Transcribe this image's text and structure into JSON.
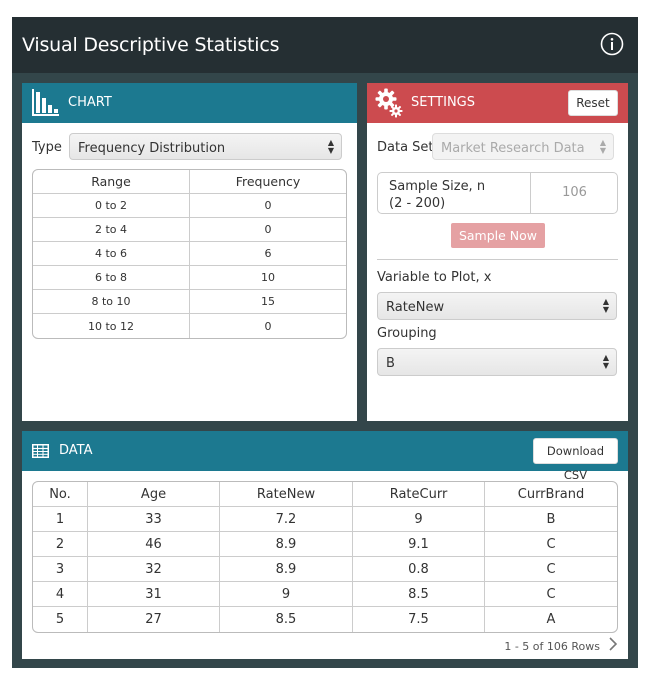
{
  "app": {
    "title": "Visual Descriptive Statistics"
  },
  "chart": {
    "title": "CHART",
    "type_label": "Type",
    "type_value": "Frequency Distribution",
    "table": {
      "headers": [
        "Range",
        "Frequency"
      ],
      "rows": [
        [
          "0 to 2",
          "0"
        ],
        [
          "2 to 4",
          "0"
        ],
        [
          "4 to 6",
          "6"
        ],
        [
          "6 to 8",
          "10"
        ],
        [
          "8 to 10",
          "15"
        ],
        [
          "10 to 12",
          "0"
        ]
      ]
    }
  },
  "settings": {
    "title": "SETTINGS",
    "reset_label": "Reset",
    "dataset_label": "Data Set",
    "dataset_value": "Market Research Data",
    "sample_size_label": "Sample Size, n",
    "sample_size_range": "(2 - 200)",
    "sample_size_value": "106",
    "sample_now_label": "Sample Now",
    "variable_label": "Variable to Plot, x",
    "variable_value": "RateNew",
    "grouping_label": "Grouping",
    "grouping_value": "B"
  },
  "data": {
    "title": "DATA",
    "download_label": "Download CSV",
    "headers": [
      "No.",
      "Age",
      "RateNew",
      "RateCurr",
      "CurrBrand"
    ],
    "rows": [
      [
        "1",
        "33",
        "7.2",
        "9",
        "B"
      ],
      [
        "2",
        "46",
        "8.9",
        "9.1",
        "C"
      ],
      [
        "3",
        "32",
        "8.9",
        "0.8",
        "C"
      ],
      [
        "4",
        "31",
        "9",
        "8.5",
        "C"
      ],
      [
        "5",
        "27",
        "8.5",
        "7.5",
        "A"
      ]
    ],
    "pager_text": "1 - 5 of 106 Rows"
  },
  "colors": {
    "header_bg": "#252f33",
    "app_bg": "#33464a",
    "teal": "#1c7990",
    "red": "#cc4b4f",
    "sample_button": "#e5a1a3"
  }
}
